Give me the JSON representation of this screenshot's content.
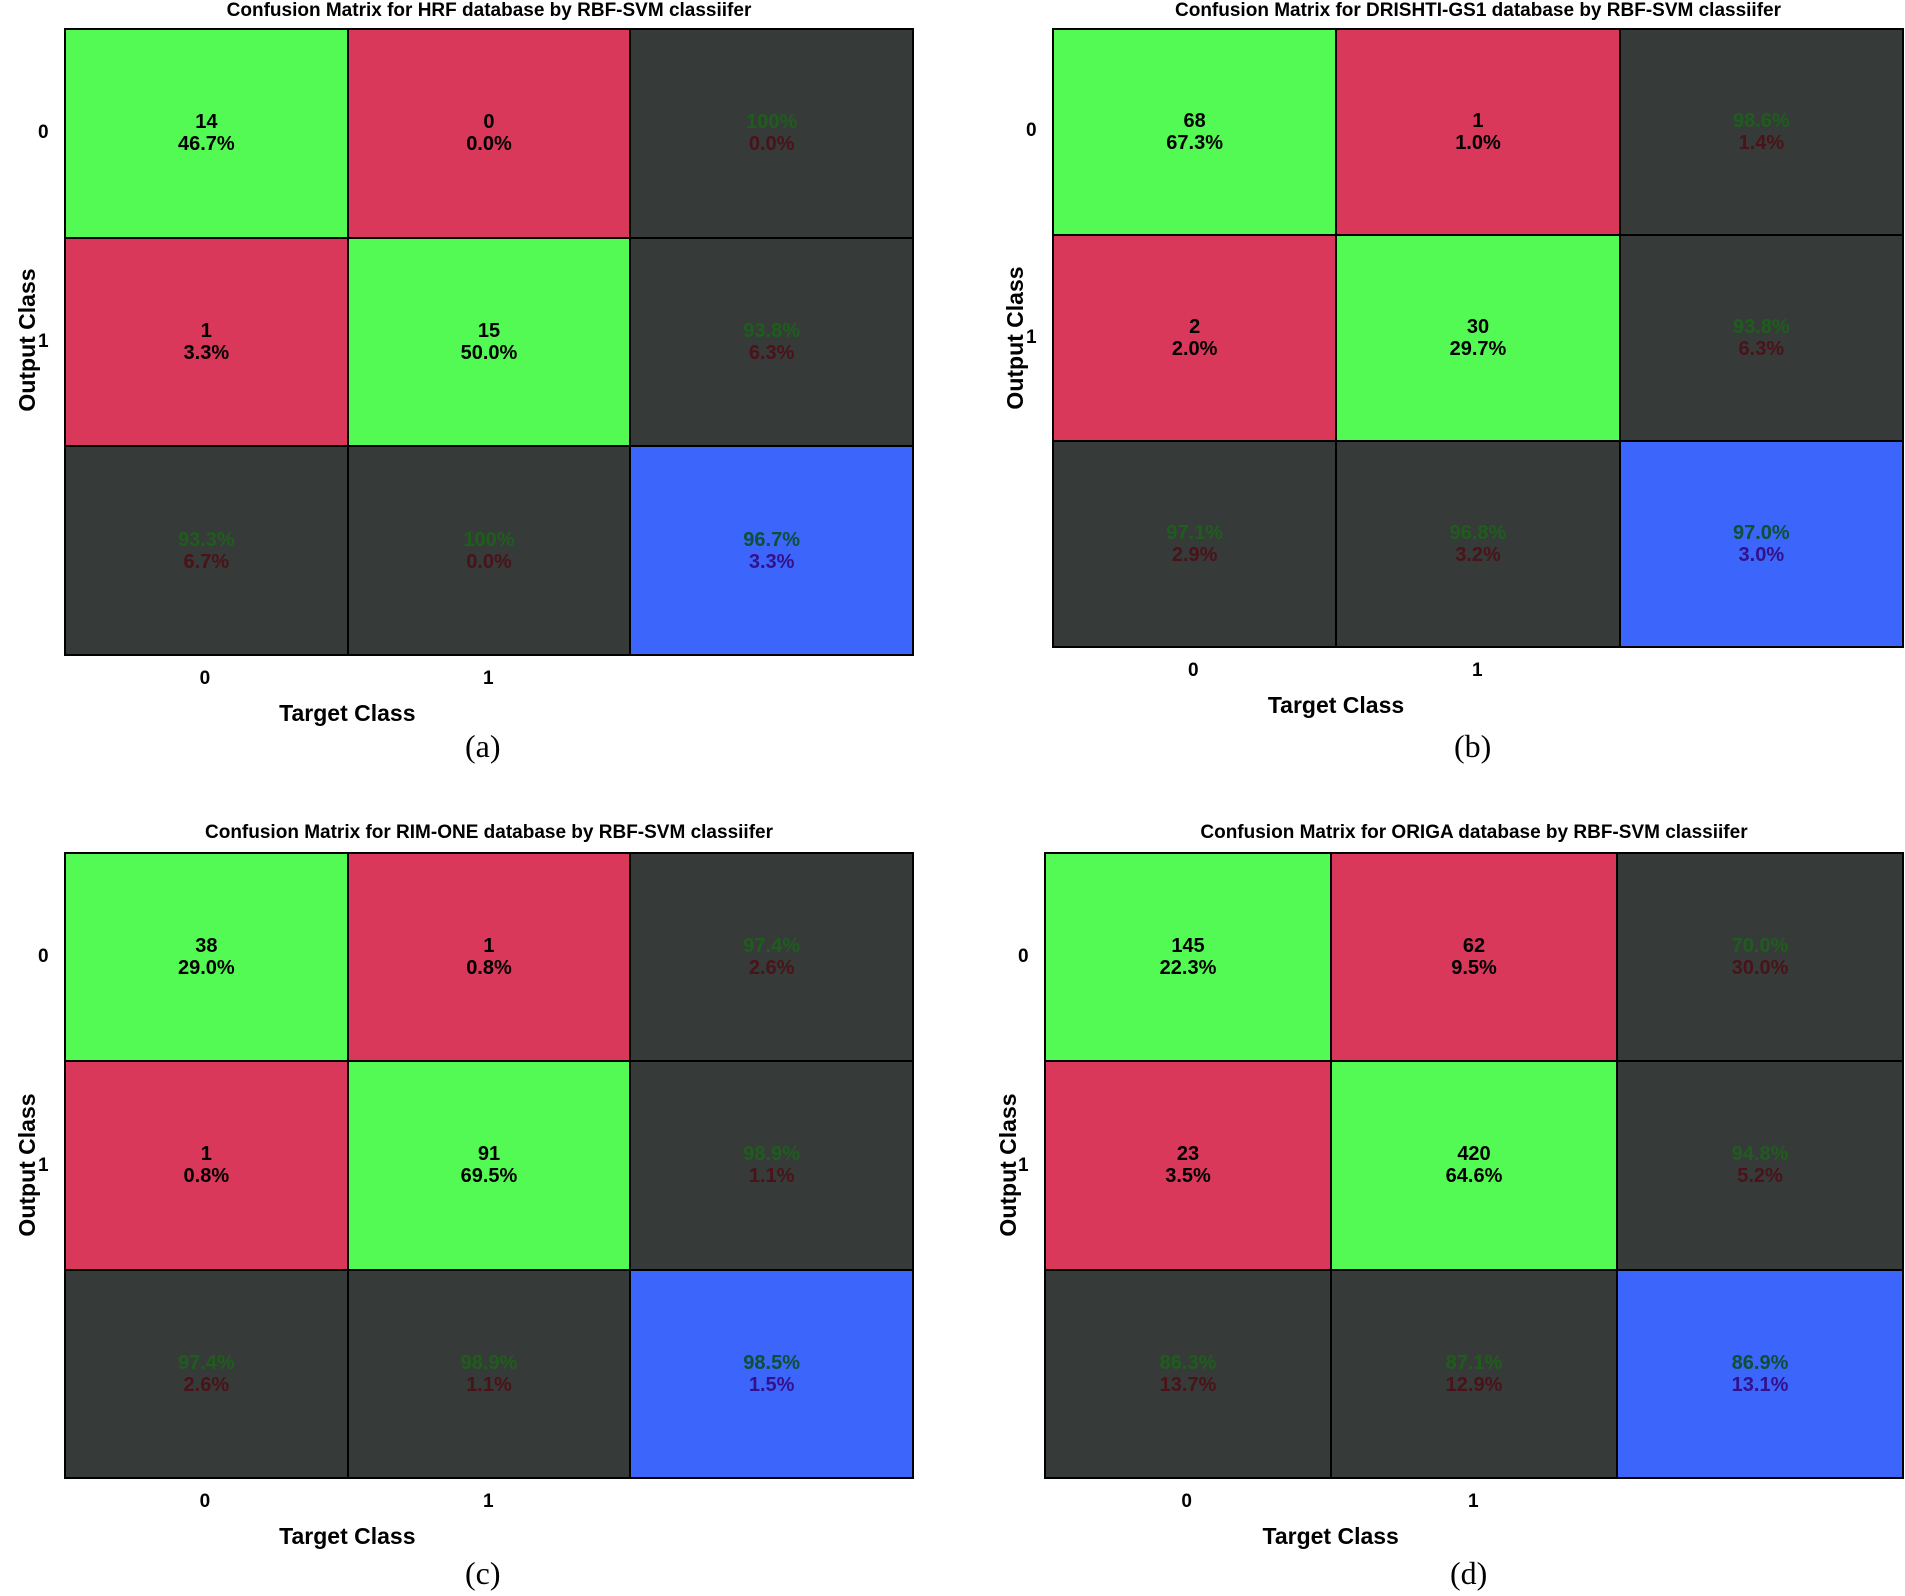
{
  "chart_data": [
    {
      "type": "heatmap",
      "title": "Confusion Matrix for HRF database by RBF-SVM classiifer",
      "xlabel": "Target Class",
      "ylabel": "Output Class",
      "x_ticks": [
        "0",
        "1"
      ],
      "y_ticks": [
        "0",
        "1"
      ],
      "caption": "(a)",
      "cells": [
        [
          {
            "top": "14",
            "bottom": "46.7%"
          },
          {
            "top": "0",
            "bottom": "0.0%"
          },
          {
            "top": "100%",
            "bottom": "0.0%"
          }
        ],
        [
          {
            "top": "1",
            "bottom": "3.3%"
          },
          {
            "top": "15",
            "bottom": "50.0%"
          },
          {
            "top": "93.8%",
            "bottom": "6.3%"
          }
        ],
        [
          {
            "top": "93.3%",
            "bottom": "6.7%"
          },
          {
            "top": "100%",
            "bottom": "0.0%"
          },
          {
            "top": "96.7%",
            "bottom": "3.3%"
          }
        ]
      ]
    },
    {
      "type": "heatmap",
      "title": "Confusion Matrix for DRISHTI-GS1 database by RBF-SVM classiifer",
      "xlabel": "Target Class",
      "ylabel": "Output Class",
      "x_ticks": [
        "0",
        "1"
      ],
      "y_ticks": [
        "0",
        "1"
      ],
      "caption": "(b)",
      "cells": [
        [
          {
            "top": "68",
            "bottom": "67.3%"
          },
          {
            "top": "1",
            "bottom": "1.0%"
          },
          {
            "top": "98.6%",
            "bottom": "1.4%"
          }
        ],
        [
          {
            "top": "2",
            "bottom": "2.0%"
          },
          {
            "top": "30",
            "bottom": "29.7%"
          },
          {
            "top": "93.8%",
            "bottom": "6.3%"
          }
        ],
        [
          {
            "top": "97.1%",
            "bottom": "2.9%"
          },
          {
            "top": "96.8%",
            "bottom": "3.2%"
          },
          {
            "top": "97.0%",
            "bottom": "3.0%"
          }
        ]
      ]
    },
    {
      "type": "heatmap",
      "title": "Confusion Matrix for RIM-ONE database by RBF-SVM classiifer",
      "xlabel": "Target Class",
      "ylabel": "Output Class",
      "x_ticks": [
        "0",
        "1"
      ],
      "y_ticks": [
        "0",
        "1"
      ],
      "caption": "(c)",
      "cells": [
        [
          {
            "top": "38",
            "bottom": "29.0%"
          },
          {
            "top": "1",
            "bottom": "0.8%"
          },
          {
            "top": "97.4%",
            "bottom": "2.6%"
          }
        ],
        [
          {
            "top": "1",
            "bottom": "0.8%"
          },
          {
            "top": "91",
            "bottom": "69.5%"
          },
          {
            "top": "98.9%",
            "bottom": "1.1%"
          }
        ],
        [
          {
            "top": "97.4%",
            "bottom": "2.6%"
          },
          {
            "top": "98.9%",
            "bottom": "1.1%"
          },
          {
            "top": "98.5%",
            "bottom": "1.5%"
          }
        ]
      ]
    },
    {
      "type": "heatmap",
      "title": "Confusion Matrix for ORIGA database by RBF-SVM classiifer",
      "xlabel": "Target Class",
      "ylabel": "Output Class",
      "x_ticks": [
        "0",
        "1"
      ],
      "y_ticks": [
        "0",
        "1"
      ],
      "caption": "(d)",
      "cells": [
        [
          {
            "top": "145",
            "bottom": "22.3%"
          },
          {
            "top": "62",
            "bottom": "9.5%"
          },
          {
            "top": "70.0%",
            "bottom": "30.0%"
          }
        ],
        [
          {
            "top": "23",
            "bottom": "3.5%"
          },
          {
            "top": "420",
            "bottom": "64.6%"
          },
          {
            "top": "94.8%",
            "bottom": "5.2%"
          }
        ],
        [
          {
            "top": "86.3%",
            "bottom": "13.7%"
          },
          {
            "top": "87.1%",
            "bottom": "12.9%"
          },
          {
            "top": "86.9%",
            "bottom": "13.1%"
          }
        ]
      ]
    }
  ]
}
